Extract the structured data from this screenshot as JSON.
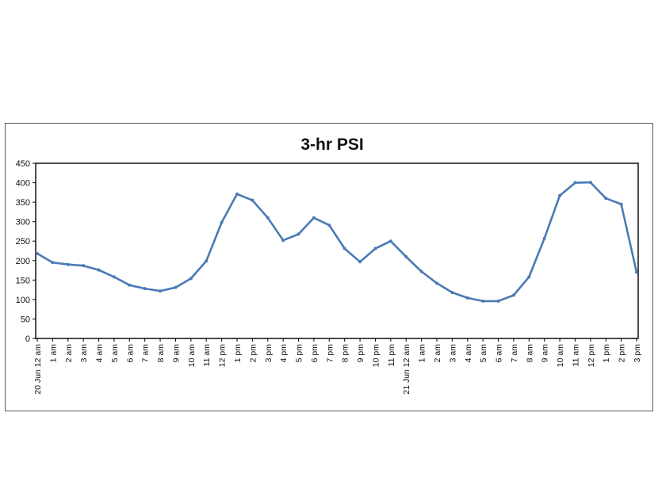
{
  "chart_data": {
    "type": "line",
    "title": "3-hr PSI",
    "xlabel": "",
    "ylabel": "",
    "ylim": [
      0,
      450
    ],
    "yticks": [
      0,
      50,
      100,
      150,
      200,
      250,
      300,
      350,
      400,
      450
    ],
    "grid": false,
    "legend": "none",
    "categories": [
      "20 Jun 12 am",
      "1 am",
      "2 am",
      "3 am",
      "4 am",
      "5 am",
      "6 am",
      "7 am",
      "8 am",
      "9 am",
      "10 am",
      "11 am",
      "12 pm",
      "1 pm",
      "2 pm",
      "3 pm",
      "4 pm",
      "5 pm",
      "6 pm",
      "7 pm",
      "8 pm",
      "9 pm",
      "10 pm",
      "11 pm",
      "21 Jun 12 am",
      "1 am",
      "2 am",
      "3 am",
      "4 am",
      "5 am",
      "6 am",
      "7 am",
      "8 am",
      "9 am",
      "10 am",
      "11 am",
      "12 pm",
      "1 pm",
      "2 pm",
      "3 pm"
    ],
    "series": [
      {
        "color": "#4a7ab5",
        "values": [
          218,
          195,
          190,
          187,
          176,
          158,
          137,
          128,
          122,
          131,
          154,
          199,
          298,
          371,
          355,
          310,
          252,
          268,
          310,
          291,
          231,
          197,
          231,
          250,
          210,
          172,
          142,
          118,
          104,
          96,
          96,
          111,
          158,
          257,
          367,
          400,
          401,
          360,
          345,
          170
        ]
      }
    ]
  }
}
